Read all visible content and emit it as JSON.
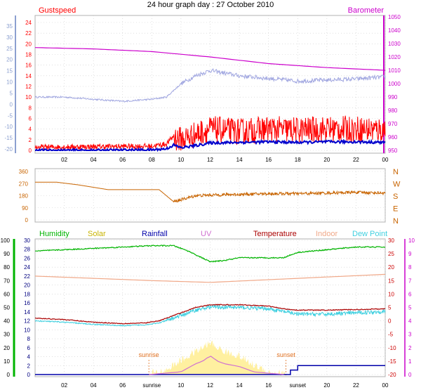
{
  "title": "24 hour graph day : 27 October 2010",
  "colors": {
    "gust": "#ff0000",
    "wind": "#0000cc",
    "baro": "#cc00cc",
    "avg": "#a0a6e0",
    "dir": "#c86400",
    "hum": "#00b400",
    "solar": "#fff0a0",
    "rain": "#0000aa",
    "uv": "#d070d0",
    "temp": "#aa0000",
    "indoor": "#f0a888",
    "dew": "#40d0e0",
    "sun": "#e07020",
    "axisLeftTop": "#8ca0d0",
    "axisHum": "#00b400",
    "axisTemp": "#cc0000",
    "axisUV": "#cc00cc",
    "axisRain": "#000080"
  },
  "chart_data": [
    {
      "type": "line",
      "name": "wind",
      "labels": {
        "left": "Gustspeed",
        "right": "Barometer"
      },
      "x_ticks": [
        "02",
        "04",
        "06",
        "08",
        "10",
        "12",
        "14",
        "16",
        "18",
        "20",
        "22",
        "00"
      ],
      "y_left_ticks": [
        24,
        22,
        20,
        18,
        16,
        14,
        12,
        10,
        8,
        6,
        4,
        2,
        0
      ],
      "y_right_ticks": [
        1050,
        1040,
        1030,
        1020,
        1010,
        1000,
        990,
        980,
        970,
        960,
        950
      ],
      "y_outer_ticks": [
        "35",
        "30",
        "25",
        "20",
        "15",
        "10",
        "5",
        "0",
        "-5",
        "-10",
        "-15",
        "-20"
      ],
      "series": [
        {
          "key": "barometer",
          "hours": [
            0,
            4,
            8,
            12,
            16,
            20,
            24
          ],
          "values": [
            1027,
            1026,
            1024,
            1020,
            1015,
            1012,
            1010
          ]
        },
        {
          "key": "avg",
          "hours": [
            0,
            2,
            4,
            6,
            8,
            9,
            10,
            11,
            12,
            14,
            16,
            18,
            20,
            22,
            24
          ],
          "values": [
            10,
            10,
            9.6,
            9.2,
            9.6,
            10,
            12.5,
            14,
            15,
            14,
            13.5,
            13,
            13.2,
            13.4,
            13.8
          ]
        },
        {
          "key": "gust",
          "hours": [
            0,
            4,
            8,
            9,
            9.5,
            10,
            11,
            12,
            14,
            16,
            18,
            20,
            22,
            24
          ],
          "values": [
            0.4,
            0.5,
            0.6,
            1,
            2.5,
            2,
            3,
            4,
            3.5,
            4,
            3.8,
            4,
            4,
            3.8
          ]
        },
        {
          "key": "wind",
          "hours": [
            0,
            4,
            8,
            9,
            9.5,
            10,
            11,
            12,
            14,
            16,
            18,
            20,
            22,
            24
          ],
          "values": [
            0,
            0,
            0.1,
            0.3,
            1,
            0.5,
            0.9,
            1.4,
            1.5,
            1.6,
            1.5,
            1.6,
            1.6,
            1.5
          ]
        }
      ]
    },
    {
      "type": "line",
      "name": "direction",
      "y_left_ticks": [
        360,
        270,
        180,
        90,
        0
      ],
      "y_right_labels": [
        "N",
        "W",
        "S",
        "E",
        "N"
      ],
      "series": [
        {
          "key": "direction",
          "hours": [
            0,
            1.5,
            3,
            5,
            7,
            8.5,
            9.5,
            10,
            11,
            12,
            14,
            16,
            18,
            20,
            22,
            24
          ],
          "values": [
            280,
            280,
            260,
            225,
            225,
            225,
            135,
            150,
            180,
            185,
            190,
            195,
            195,
            200,
            205,
            200
          ]
        }
      ]
    },
    {
      "type": "line",
      "name": "temperature",
      "labels": {
        "humidity": "Humidity",
        "solar": "Solar",
        "rainfall": "Rainfall",
        "uv": "UV",
        "temperature": "Temperature",
        "indoor": "Indoor",
        "dew": "Dew Point",
        "sunrise": "sunrise",
        "sunset": "sunset"
      },
      "x_ticks": [
        "02",
        "04",
        "06",
        "sunrise",
        "10",
        "12",
        "14",
        "16",
        "sunset",
        "20",
        "22",
        "00"
      ],
      "y_hum_ticks": [
        100,
        90,
        80,
        70,
        60,
        50,
        40,
        30,
        20,
        10,
        0
      ],
      "y_left_ticks": [
        30,
        28,
        26,
        24,
        22,
        20,
        18,
        16,
        14,
        12,
        10,
        8,
        6,
        4,
        2,
        0
      ],
      "y_temp_ticks": [
        30,
        25,
        20,
        15,
        10,
        5,
        0,
        -5,
        -10,
        -15,
        -20
      ],
      "y_uv_ticks": [
        10,
        9,
        8,
        7,
        6,
        5,
        4,
        3,
        2,
        1,
        0
      ],
      "sunrise_hour": 7.8,
      "sunset_hour": 17.2,
      "series": [
        {
          "key": "humidity",
          "hours": [
            0,
            2,
            4,
            6,
            8,
            9.5,
            10.5,
            12,
            13,
            14,
            16,
            17,
            18,
            20,
            22,
            24
          ],
          "values": [
            92,
            93,
            94,
            95,
            96,
            96,
            92,
            84,
            85,
            87,
            87,
            87,
            91,
            93,
            95,
            95
          ]
        },
        {
          "key": "indoor",
          "hours": [
            0,
            4,
            8,
            12,
            16,
            20,
            24
          ],
          "values": [
            22,
            21.5,
            21,
            20.6,
            21.2,
            21.8,
            22.4
          ]
        },
        {
          "key": "temperature",
          "hours": [
            0,
            2,
            4,
            6,
            7.5,
            8.5,
            10,
            11,
            12,
            14,
            16,
            17,
            18,
            20,
            22,
            24
          ],
          "values": [
            1,
            0.5,
            -0.5,
            -1,
            -0.8,
            0,
            3,
            5,
            6,
            6,
            5.5,
            4.5,
            4,
            4,
            4.2,
            4.5
          ]
        },
        {
          "key": "dew",
          "hours": [
            0,
            2,
            4,
            6,
            7.5,
            8.5,
            10,
            11,
            12,
            14,
            16,
            17,
            18,
            20,
            22,
            24
          ],
          "values": [
            0,
            -0.5,
            -1.3,
            -1.8,
            -1.5,
            -0.8,
            2,
            4,
            5.2,
            5,
            4.5,
            3.5,
            2.5,
            2.5,
            3,
            3.5
          ]
        },
        {
          "key": "uv",
          "hours": [
            7.8,
            10,
            11,
            11.5,
            12,
            12.5,
            13,
            14,
            15,
            16,
            17.2
          ],
          "values": [
            0,
            0.2,
            0.8,
            1,
            1.4,
            1,
            0.8,
            0.6,
            0.2,
            0.1,
            0
          ]
        },
        {
          "key": "solar",
          "hours": [
            7.8,
            9,
            10,
            11,
            12,
            13,
            14,
            15,
            16,
            17.2
          ],
          "values": [
            0,
            1,
            3,
            5,
            7,
            5,
            4,
            2,
            0.6,
            0
          ]
        },
        {
          "key": "rainfall",
          "hours": [
            0,
            17,
            17.5,
            18,
            24
          ],
          "values": [
            0,
            0,
            1,
            2,
            2
          ]
        }
      ]
    }
  ]
}
